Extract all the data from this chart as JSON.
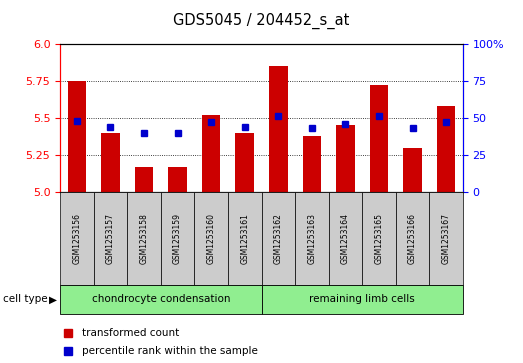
{
  "title": "GDS5045 / 204452_s_at",
  "samples": [
    "GSM1253156",
    "GSM1253157",
    "GSM1253158",
    "GSM1253159",
    "GSM1253160",
    "GSM1253161",
    "GSM1253162",
    "GSM1253163",
    "GSM1253164",
    "GSM1253165",
    "GSM1253166",
    "GSM1253167"
  ],
  "transformed_count": [
    5.75,
    5.4,
    5.17,
    5.17,
    5.52,
    5.4,
    5.85,
    5.38,
    5.45,
    5.72,
    5.3,
    5.58
  ],
  "percentile_rank": [
    48,
    44,
    40,
    40,
    47,
    44,
    51,
    43,
    46,
    51,
    43,
    47
  ],
  "ylim_left": [
    5.0,
    6.0
  ],
  "ylim_right": [
    0,
    100
  ],
  "yticks_left": [
    5.0,
    5.25,
    5.5,
    5.75,
    6.0
  ],
  "yticks_right": [
    0,
    25,
    50,
    75,
    100
  ],
  "bar_color": "#cc0000",
  "dot_color": "#0000cc",
  "group1_label": "chondrocyte condensation",
  "group2_label": "remaining limb cells",
  "group1_bg": "#90ee90",
  "group2_bg": "#90ee90",
  "sample_bg": "#cccccc",
  "cell_type_label": "cell type",
  "legend1": "transformed count",
  "legend2": "percentile rank within the sample"
}
